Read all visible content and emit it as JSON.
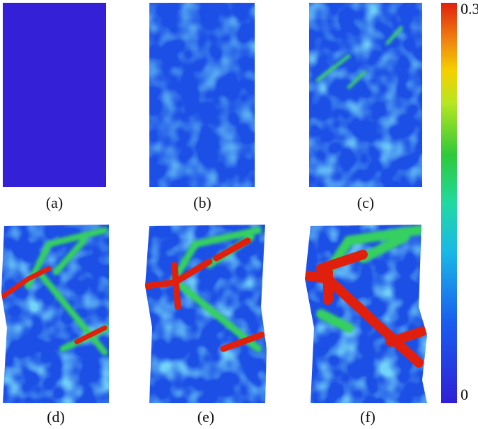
{
  "panels": [
    {
      "label": "(a)"
    },
    {
      "label": "(b)"
    },
    {
      "label": "(c)"
    },
    {
      "label": "(d)"
    },
    {
      "label": "(e)"
    },
    {
      "label": "(f)"
    }
  ],
  "colorbar": {
    "ticks": [
      0,
      0.3
    ]
  }
}
